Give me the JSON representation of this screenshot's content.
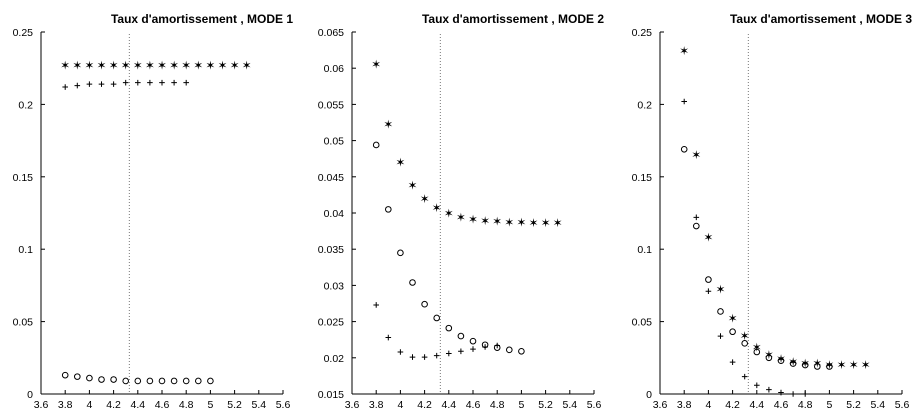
{
  "chart_data": [
    {
      "type": "scatter",
      "title": "Taux d'amortissement , MODE 1",
      "xlim": [
        3.6,
        5.6
      ],
      "ylim": [
        0,
        0.25
      ],
      "xticks": [
        "3.6",
        "3.8",
        "4",
        "4.2",
        "4.4",
        "4.6",
        "4.8",
        "5",
        "5.2",
        "5.4",
        "5.6"
      ],
      "yticks": [
        "0",
        "0.05",
        "0.1",
        "0.15",
        "0.2",
        "0.25"
      ],
      "reference_x": 4.33,
      "series": [
        {
          "marker": "star",
          "x": [
            3.8,
            3.9,
            4.0,
            4.1,
            4.2,
            4.3,
            4.4,
            4.5,
            4.6,
            4.7,
            4.8,
            4.9,
            5.0,
            5.1,
            5.2,
            5.3
          ],
          "y": [
            0.227,
            0.227,
            0.227,
            0.227,
            0.227,
            0.227,
            0.227,
            0.227,
            0.227,
            0.227,
            0.227,
            0.227,
            0.227,
            0.227,
            0.227,
            0.227
          ]
        },
        {
          "marker": "plus",
          "x": [
            3.8,
            3.9,
            4.0,
            4.1,
            4.2,
            4.3,
            4.4,
            4.5,
            4.6,
            4.7,
            4.8
          ],
          "y": [
            0.212,
            0.213,
            0.214,
            0.214,
            0.214,
            0.215,
            0.215,
            0.215,
            0.215,
            0.215,
            0.215
          ]
        },
        {
          "marker": "circle",
          "x": [
            3.8,
            3.9,
            4.0,
            4.1,
            4.2,
            4.3,
            4.4,
            4.5,
            4.6,
            4.7,
            4.8,
            4.9,
            5.0
          ],
          "y": [
            0.013,
            0.012,
            0.011,
            0.01,
            0.01,
            0.009,
            0.009,
            0.009,
            0.009,
            0.009,
            0.009,
            0.009,
            0.009
          ]
        }
      ]
    },
    {
      "type": "scatter",
      "title": "Taux d'amortissement , MODE 2",
      "xlim": [
        3.6,
        5.6
      ],
      "ylim": [
        0.015,
        0.065
      ],
      "xticks": [
        "3.6",
        "3.8",
        "4",
        "4.2",
        "4.4",
        "4.6",
        "4.8",
        "5",
        "5.2",
        "5.4",
        "5.6"
      ],
      "yticks": [
        "0.015",
        "0.02",
        "0.025",
        "0.03",
        "0.035",
        "0.04",
        "0.045",
        "0.05",
        "0.055",
        "0.06",
        "0.065"
      ],
      "reference_x": 4.33,
      "series": [
        {
          "marker": "star",
          "x": [
            3.8,
            3.9,
            4.0,
            4.1,
            4.2,
            4.3,
            4.4,
            4.5,
            4.6,
            4.7,
            4.8,
            4.9,
            5.0,
            5.1,
            5.2,
            5.3
          ],
          "y": [
            0.0605,
            0.0522,
            0.047,
            0.0438,
            0.0419,
            0.0407,
            0.0399,
            0.0394,
            0.0391,
            0.0389,
            0.0388,
            0.0387,
            0.0387,
            0.0386,
            0.0386,
            0.0386
          ]
        },
        {
          "marker": "circle",
          "x": [
            3.8,
            3.9,
            4.0,
            4.1,
            4.2,
            4.3,
            4.4,
            4.5,
            4.6,
            4.7,
            4.8,
            4.9,
            5.0
          ],
          "y": [
            0.0494,
            0.0405,
            0.0345,
            0.0304,
            0.0274,
            0.0255,
            0.0241,
            0.023,
            0.0223,
            0.0218,
            0.0214,
            0.0211,
            0.0209
          ]
        },
        {
          "marker": "plus",
          "x": [
            3.8,
            3.9,
            4.0,
            4.1,
            4.2,
            4.3,
            4.4,
            4.5,
            4.6,
            4.7,
            4.8
          ],
          "y": [
            0.0273,
            0.0228,
            0.0208,
            0.0201,
            0.0201,
            0.0203,
            0.0206,
            0.0209,
            0.0212,
            0.0215,
            0.0217
          ]
        }
      ]
    },
    {
      "type": "scatter",
      "title": "Taux d'amortissement , MODE 3",
      "xlim": [
        3.6,
        5.6
      ],
      "ylim": [
        0,
        0.25
      ],
      "xticks": [
        "3.6",
        "3.8",
        "4",
        "4.2",
        "4.4",
        "4.6",
        "4.8",
        "5",
        "5.2",
        "5.4",
        "5.6"
      ],
      "yticks": [
        "0",
        "0.05",
        "0.1",
        "0.15",
        "0.2",
        "0.25"
      ],
      "reference_x": 4.33,
      "series": [
        {
          "marker": "star",
          "x": [
            3.8,
            3.9,
            4.0,
            4.1,
            4.2,
            4.3,
            4.4,
            4.5,
            4.6,
            4.7,
            4.8,
            4.9,
            5.0,
            5.1,
            5.2,
            5.3
          ],
          "y": [
            0.237,
            0.165,
            0.108,
            0.072,
            0.052,
            0.04,
            0.032,
            0.027,
            0.024,
            0.022,
            0.021,
            0.021,
            0.02,
            0.02,
            0.02,
            0.02
          ]
        },
        {
          "marker": "plus",
          "x": [
            3.8,
            3.9,
            4.0,
            4.1,
            4.2,
            4.3,
            4.4,
            4.5,
            4.6,
            4.7,
            4.8
          ],
          "y": [
            0.202,
            0.122,
            0.071,
            0.04,
            0.022,
            0.012,
            0.006,
            0.003,
            0.001,
            0.0,
            0.0
          ]
        },
        {
          "marker": "circle",
          "x": [
            3.8,
            3.9,
            4.0,
            4.1,
            4.2,
            4.3,
            4.4,
            4.5,
            4.6,
            4.7,
            4.8,
            4.9,
            5.0
          ],
          "y": [
            0.169,
            0.116,
            0.079,
            0.057,
            0.043,
            0.035,
            0.029,
            0.025,
            0.023,
            0.021,
            0.02,
            0.019,
            0.019
          ]
        }
      ]
    }
  ]
}
